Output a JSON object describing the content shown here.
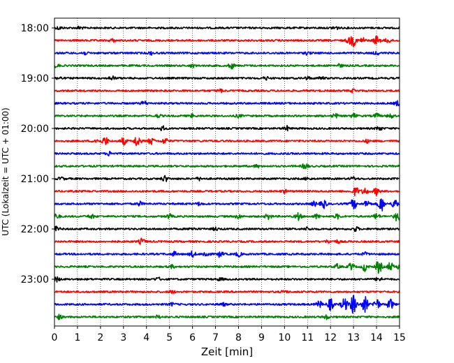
{
  "chart_data": {
    "type": "line",
    "title": "",
    "xlabel": "Zeit  [min]",
    "ylabel": "UTC (Lokalzeit = UTC + 01:00)",
    "xlim": [
      0,
      15
    ],
    "x_ticks": [
      "0",
      "1",
      "2",
      "3",
      "4",
      "5",
      "6",
      "7",
      "8",
      "9",
      "10",
      "11",
      "12",
      "13",
      "14",
      "15"
    ],
    "y_ticks": [
      "18:00",
      "19:00",
      "20:00",
      "21:00",
      "22:00",
      "23:00"
    ],
    "grid": "vertical dotted",
    "trace_interval_min": 15,
    "trace_colors": [
      "#000000",
      "#ff0000",
      "#0000ff",
      "#008000"
    ],
    "traces": [
      {
        "start": "18:00",
        "events": [
          [
            0.2,
            2
          ],
          [
            1.1,
            2
          ],
          [
            12.2,
            3
          ]
        ]
      },
      {
        "start": "18:15",
        "events": [
          [
            2.5,
            2
          ],
          [
            12.8,
            4
          ],
          [
            13.0,
            7
          ],
          [
            13.4,
            4
          ],
          [
            14.0,
            6
          ],
          [
            14.5,
            3
          ]
        ]
      },
      {
        "start": "18:30",
        "events": [
          [
            1.3,
            2
          ],
          [
            4.2,
            2
          ],
          [
            11.0,
            2
          ],
          [
            14.0,
            2
          ]
        ]
      },
      {
        "start": "18:45",
        "events": [
          [
            0.1,
            2
          ],
          [
            6.0,
            2
          ],
          [
            7.7,
            4
          ],
          [
            12.4,
            2
          ]
        ]
      },
      {
        "start": "19:00",
        "events": [
          [
            0.2,
            2
          ],
          [
            2.5,
            3
          ],
          [
            9.2,
            2
          ],
          [
            11.0,
            2
          ],
          [
            11.6,
            2
          ]
        ]
      },
      {
        "start": "19:15",
        "events": [
          [
            7.2,
            2
          ],
          [
            13.0,
            2
          ]
        ]
      },
      {
        "start": "19:30",
        "events": [
          [
            3.9,
            3
          ],
          [
            14.9,
            3
          ]
        ]
      },
      {
        "start": "19:45",
        "events": [
          [
            4.5,
            2
          ],
          [
            6.0,
            2
          ],
          [
            8.0,
            2
          ],
          [
            12.2,
            3
          ],
          [
            13.0,
            3
          ],
          [
            14.0,
            3
          ],
          [
            14.6,
            3
          ]
        ]
      },
      {
        "start": "20:00",
        "events": [
          [
            4.7,
            3
          ],
          [
            10.1,
            3
          ],
          [
            14.1,
            3
          ]
        ]
      },
      {
        "start": "20:15",
        "events": [
          [
            1.8,
            3
          ],
          [
            2.2,
            6
          ],
          [
            3.0,
            5
          ],
          [
            3.6,
            9
          ],
          [
            4.2,
            5
          ],
          [
            4.8,
            4
          ],
          [
            13.6,
            2
          ]
        ]
      },
      {
        "start": "20:30",
        "events": [
          [
            2.4,
            3
          ]
        ]
      },
      {
        "start": "20:45",
        "events": [
          [
            8.8,
            2
          ],
          [
            10.9,
            4
          ]
        ]
      },
      {
        "start": "21:00",
        "events": [
          [
            0.3,
            2
          ],
          [
            4.8,
            4
          ],
          [
            6.3,
            2
          ],
          [
            11.0,
            2
          ],
          [
            13.0,
            2
          ]
        ]
      },
      {
        "start": "21:15",
        "events": [
          [
            10.0,
            2
          ],
          [
            13.1,
            6
          ],
          [
            13.5,
            5
          ],
          [
            14.0,
            5
          ]
        ]
      },
      {
        "start": "21:30",
        "events": [
          [
            3.7,
            3
          ],
          [
            6.3,
            2
          ],
          [
            11.3,
            3
          ],
          [
            11.7,
            6
          ],
          [
            13.0,
            7
          ],
          [
            13.6,
            5
          ],
          [
            14.2,
            11
          ],
          [
            14.8,
            7
          ]
        ]
      },
      {
        "start": "21:45",
        "events": [
          [
            0.1,
            3
          ],
          [
            1.6,
            3
          ],
          [
            5.0,
            3
          ],
          [
            8.0,
            3
          ],
          [
            9.3,
            4
          ],
          [
            10.6,
            5
          ],
          [
            11.4,
            3
          ],
          [
            12.3,
            3
          ],
          [
            14.0,
            4
          ],
          [
            14.9,
            7
          ]
        ]
      },
      {
        "start": "22:00",
        "events": [
          [
            0.1,
            3
          ],
          [
            6.0,
            2
          ],
          [
            7.0,
            2
          ],
          [
            11.0,
            2
          ],
          [
            13.1,
            3
          ]
        ]
      },
      {
        "start": "22:15",
        "events": [
          [
            3.8,
            4
          ],
          [
            11.9,
            2
          ],
          [
            12.3,
            2
          ]
        ]
      },
      {
        "start": "22:30",
        "events": [
          [
            5.2,
            3
          ],
          [
            6.0,
            4
          ],
          [
            6.6,
            5
          ],
          [
            7.2,
            4
          ],
          [
            8.0,
            3
          ],
          [
            13.5,
            2
          ]
        ]
      },
      {
        "start": "22:45",
        "events": [
          [
            5.1,
            2
          ],
          [
            12.3,
            3
          ],
          [
            12.9,
            5
          ],
          [
            13.5,
            6
          ],
          [
            14.1,
            9
          ],
          [
            14.6,
            6
          ],
          [
            15.0,
            4
          ]
        ]
      },
      {
        "start": "23:00",
        "events": [
          [
            0.1,
            3
          ],
          [
            4.5,
            2
          ],
          [
            7.2,
            2
          ],
          [
            14.1,
            3
          ]
        ]
      },
      {
        "start": "23:15",
        "events": [
          [
            5.1,
            2
          ],
          [
            10.0,
            2
          ]
        ]
      },
      {
        "start": "23:30",
        "events": [
          [
            5.1,
            2
          ],
          [
            7.3,
            2
          ],
          [
            11.5,
            5
          ],
          [
            12.0,
            8
          ],
          [
            12.6,
            10
          ],
          [
            13.0,
            15
          ],
          [
            13.5,
            11
          ],
          [
            14.0,
            9
          ],
          [
            14.6,
            8
          ]
        ]
      },
      {
        "start": "23:45",
        "events": [
          [
            0.2,
            3
          ],
          [
            4.5,
            2
          ],
          [
            11.8,
            3
          ]
        ]
      }
    ]
  }
}
